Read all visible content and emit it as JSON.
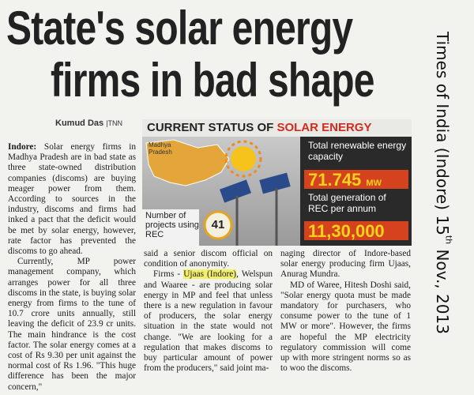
{
  "header": {
    "title_line1": "State's solar energy",
    "title_line2": "firms in bad shape"
  },
  "byline": {
    "author": "Kumud Das",
    "agency": "TNN"
  },
  "source": {
    "text_before": "Times of India (Indore) 15",
    "superscript": "th",
    "text_after": "Nov., 2013"
  },
  "infographic": {
    "title_part1": "CURRENT STATUS OF",
    "title_part2": "SOLAR ENERGY",
    "map_label": "Madhya Pradesh",
    "stat1_label": "Total renewable energy capacity",
    "stat1_value": "71.745",
    "stat1_unit": "MW",
    "stat2_label": "Total generation of REC per annum",
    "stat2_value": "11,30,000",
    "projects_label": "Number of projects using REC",
    "projects_value": "41"
  },
  "article": {
    "dateline": "Indore:",
    "col1_p1": "Solar energy firms in Madhya Pradesh are in bad state as three state-owned distribution companies (discoms) are buying meager power from them. According to sources in the industry, discoms and firms had inked a pact that the deficit would be met by solar energy, however, rate factor has prevented the discoms to go ahead.",
    "col1_p2": "Currently, MP power management company, which arranges power for all three discoms in the state, is buying solar energy from firms to the tune of 10.7 crore units annually, still leaving the deficit of 23.9 cr units. The main hindrance is the cost factor. The solar energy comes at a cost of Rs 9.30 per unit against the normal cost of Rs 1.96. \"This huge difference has been the major concern,\"",
    "col2_p1": "said a senior discom official on condition of anonymity.",
    "col2_p2_before": "Firms -",
    "col2_p2_highlight": "Ujaas (Indore)",
    "col2_p2_after": ", Welspun and Waaree - are producing solar energy in MP and feel that unless there is a new regulation in favour of producers, the solar energy situation in the state would not change. \"We are looking for a regulation that makes discoms to buy particular amount of power from the producers,\" said joint ma-",
    "col3_p1": "naging director of Indore-based solar energy producing firm Ujaas, Anurag Mundra.",
    "col3_p2": "MD of Waree, Hitesh Doshi said, \"Solar energy quota must be made mandatory for purchasers, who consume power to the tune of 1 MW or more\". However, the firms are hopeful the MP electricity regulatory commission will come up with more stringent norms so as to woo the discoms."
  }
}
